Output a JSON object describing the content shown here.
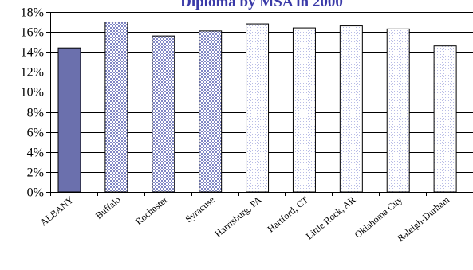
{
  "chart_data": {
    "type": "bar",
    "title": "Diploma by MSA in 2000",
    "xlabel": "",
    "ylabel": "",
    "ylim": [
      0,
      18
    ],
    "y_unit": "%",
    "y_ticks": [
      "0%",
      "2%",
      "4%",
      "6%",
      "8%",
      "10%",
      "12%",
      "14%",
      "16%",
      "18%"
    ],
    "grid": true,
    "legend": "none",
    "categories": [
      "ALBANY",
      "Buffalo",
      "Rochester",
      "Syracuse",
      "Harrisburg, PA",
      "Hartford, CT",
      "Little Rock, AR",
      "Oklahoma City",
      "Raleigh-Durham"
    ],
    "values": [
      14.4,
      17.0,
      15.6,
      16.1,
      16.8,
      16.4,
      16.6,
      16.3,
      14.6
    ],
    "bar_styles": [
      "solid",
      "dense-pattern",
      "dense-pattern",
      "dense-pattern",
      "light-pattern",
      "light-pattern",
      "light-pattern",
      "light-pattern",
      "light-pattern"
    ]
  },
  "colors": {
    "title": "#3a3aa8",
    "albany_bar": "#6b70ad",
    "pattern_dense": "#8086c4",
    "pattern_light": "#b9bde6",
    "axis": "#000000",
    "grid": "#000000"
  }
}
